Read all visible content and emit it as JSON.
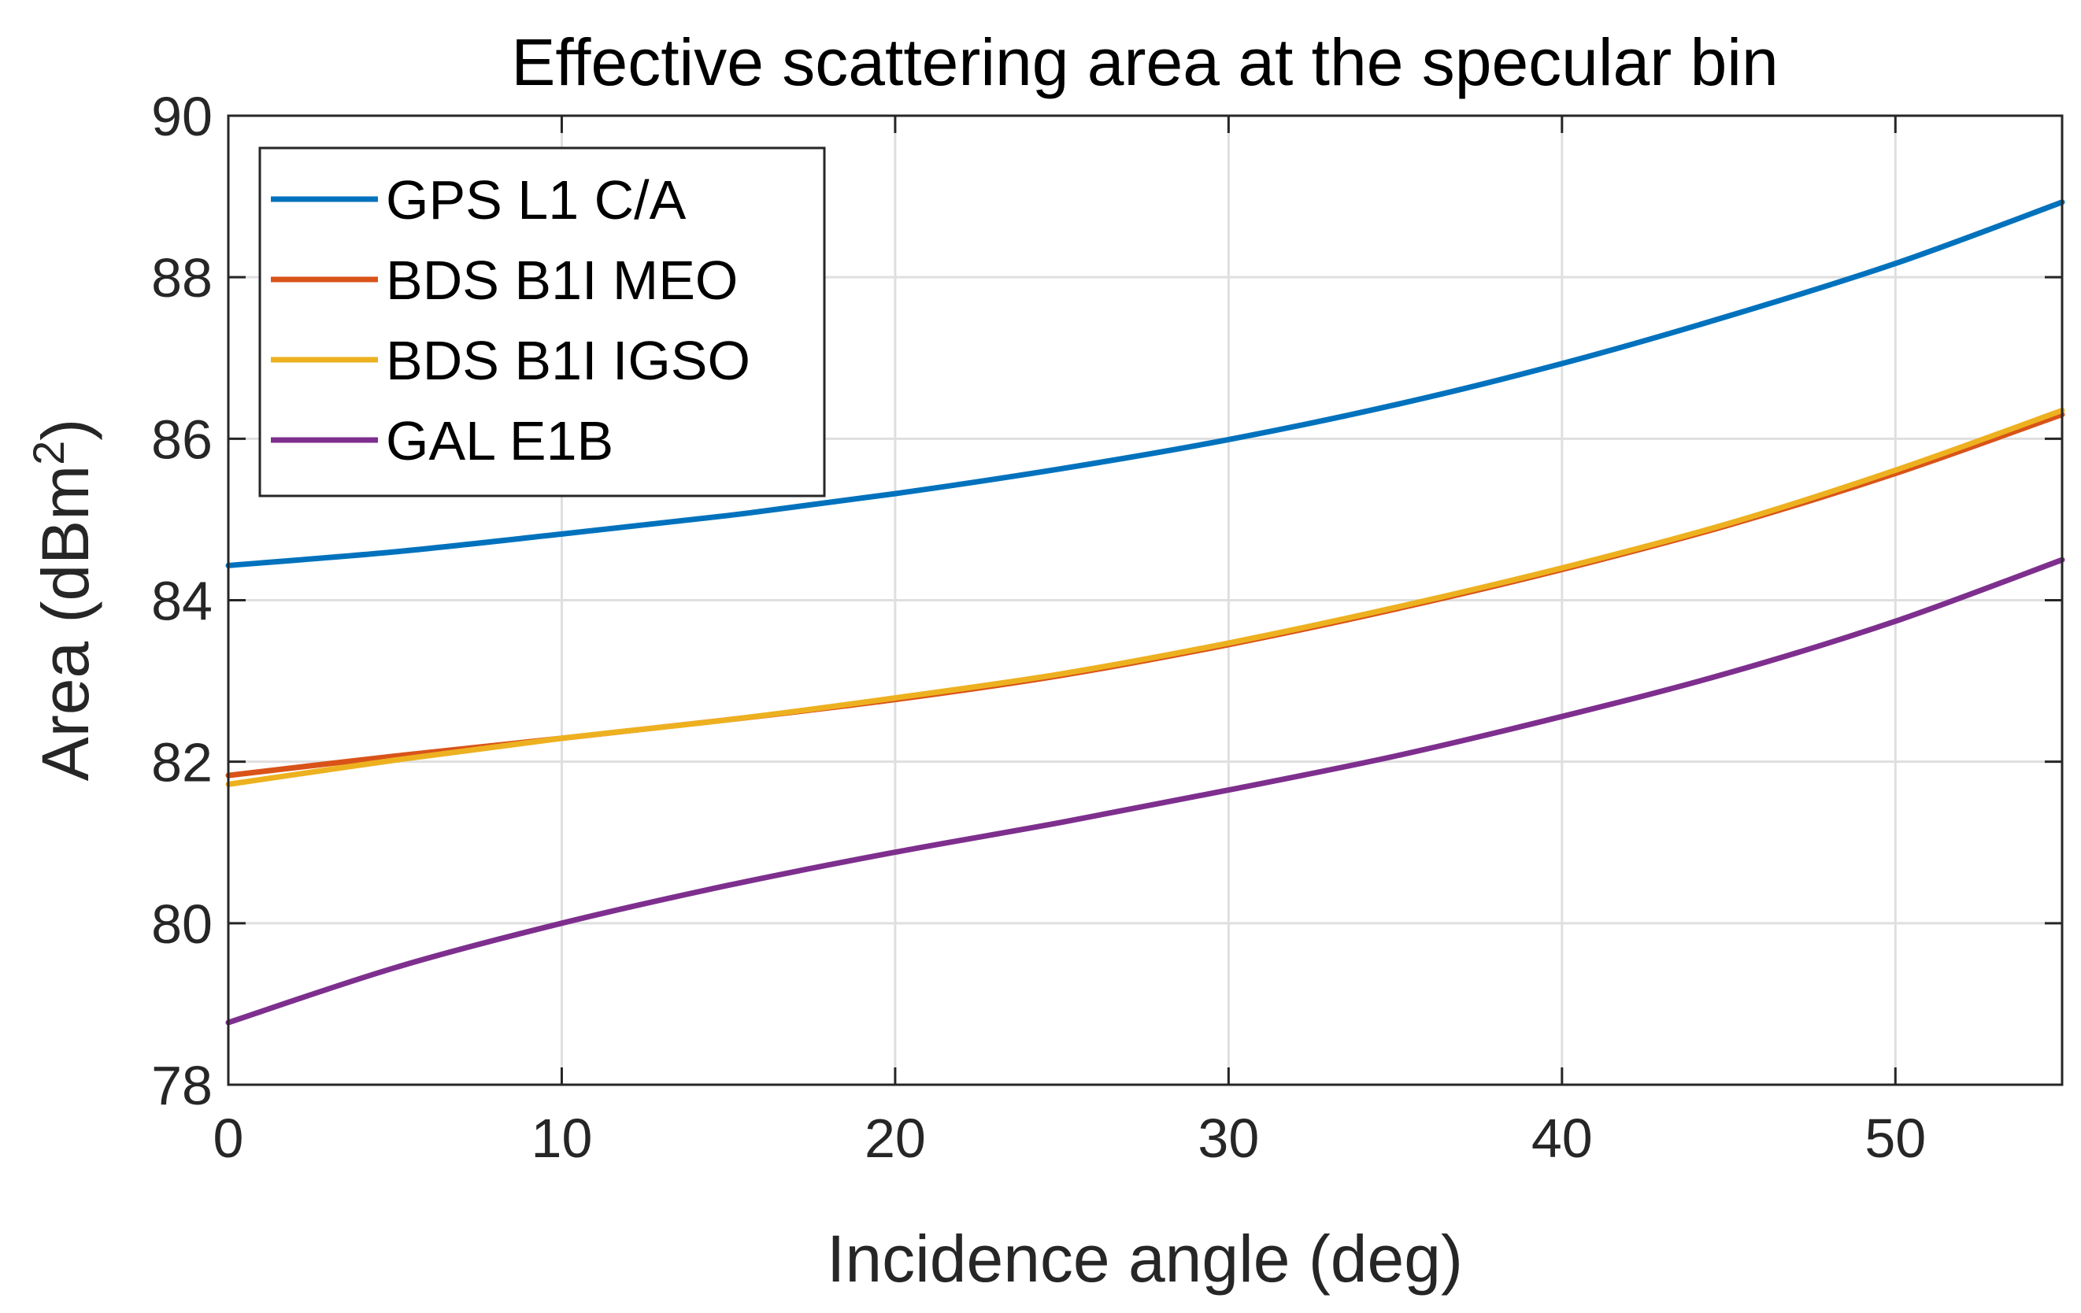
{
  "chart_data": {
    "type": "line",
    "title": "Effective scattering area at the specular bin",
    "xlabel": "Incidence angle (deg)",
    "ylabel": "Area (dBm",
    "ylabel_sup": "2",
    "ylabel_close": ")",
    "xlim": [
      0,
      55
    ],
    "ylim": [
      78,
      90
    ],
    "xticks": [
      0,
      10,
      20,
      30,
      40,
      50
    ],
    "yticks": [
      78,
      80,
      82,
      84,
      86,
      88,
      90
    ],
    "grid": true,
    "legend_position": "top-left",
    "x": [
      0,
      5,
      10,
      15,
      20,
      25,
      30,
      35,
      40,
      45,
      50,
      55
    ],
    "series": [
      {
        "name": "GPS L1 C/A",
        "color": "#0072BD",
        "values": [
          84.43,
          84.6,
          84.82,
          85.05,
          85.32,
          85.63,
          85.99,
          86.42,
          86.93,
          87.52,
          88.17,
          88.93
        ]
      },
      {
        "name": "BDS B1I MEO",
        "color": "#D95319",
        "values": [
          81.83,
          82.07,
          82.29,
          82.52,
          82.77,
          83.07,
          83.45,
          83.89,
          84.38,
          84.93,
          85.57,
          86.3
        ]
      },
      {
        "name": "BDS B1I IGSO",
        "color": "#EDB120",
        "values": [
          81.72,
          82.02,
          82.29,
          82.52,
          82.79,
          83.09,
          83.47,
          83.91,
          84.4,
          84.95,
          85.61,
          86.35
        ]
      },
      {
        "name": "GAL E1B",
        "color": "#7E2F8E",
        "values": [
          78.77,
          79.45,
          80.0,
          80.47,
          80.88,
          81.25,
          81.65,
          82.07,
          82.56,
          83.1,
          83.74,
          84.5
        ]
      }
    ]
  }
}
